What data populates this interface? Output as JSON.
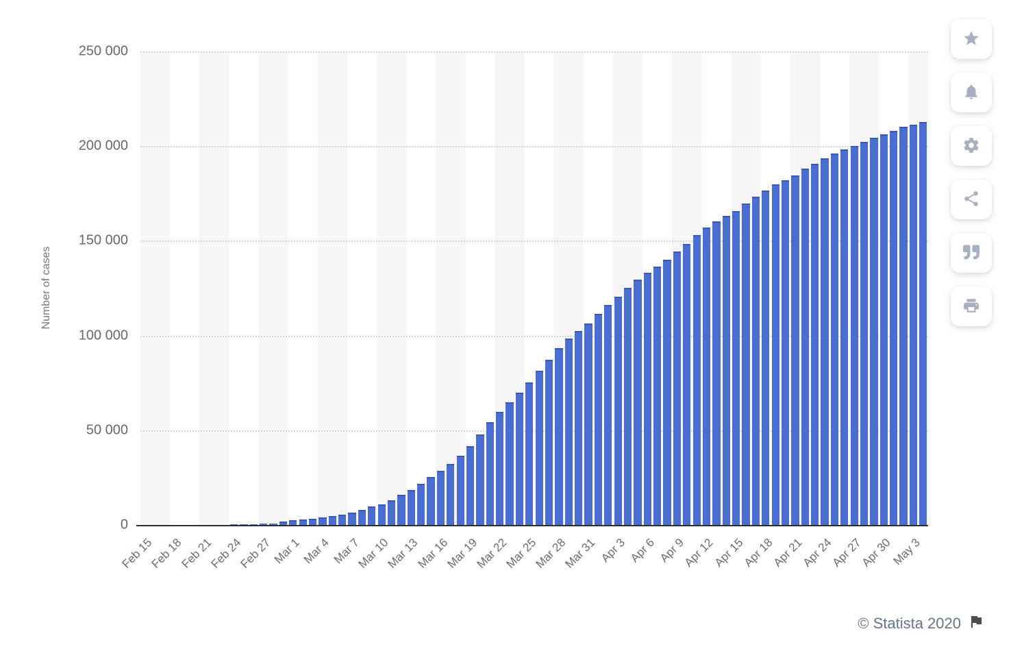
{
  "chart_data": {
    "type": "bar",
    "title": "",
    "xlabel": "",
    "ylabel": "Number of cases",
    "ylim": [
      0,
      250000
    ],
    "grid": "horizontal-dotted",
    "legend": "none",
    "x_tick_every": 3,
    "y_ticks": [
      {
        "value": 250000,
        "label": "250 000"
      },
      {
        "value": 200000,
        "label": "200 000"
      },
      {
        "value": 150000,
        "label": "150 000"
      },
      {
        "value": 100000,
        "label": "100 000"
      },
      {
        "value": 50000,
        "label": "50 000"
      },
      {
        "value": 0,
        "label": "0"
      }
    ],
    "categories": [
      "Feb 15",
      "Feb 16",
      "Feb 17",
      "Feb 18",
      "Feb 19",
      "Feb 20",
      "Feb 21",
      "Feb 22",
      "Feb 23",
      "Feb 24",
      "Feb 25",
      "Feb 26",
      "Feb 27",
      "Feb 28",
      "Feb 29",
      "Mar 1",
      "Mar 2",
      "Mar 3",
      "Mar 4",
      "Mar 5",
      "Mar 6",
      "Mar 7",
      "Mar 8",
      "Mar 9",
      "Mar 10",
      "Mar 11",
      "Mar 12",
      "Mar 13",
      "Mar 14",
      "Mar 15",
      "Mar 16",
      "Mar 17",
      "Mar 18",
      "Mar 19",
      "Mar 20",
      "Mar 21",
      "Mar 22",
      "Mar 23",
      "Mar 24",
      "Mar 25",
      "Mar 26",
      "Mar 27",
      "Mar 28",
      "Mar 29",
      "Mar 30",
      "Mar 31",
      "Apr 1",
      "Apr 2",
      "Apr 3",
      "Apr 4",
      "Apr 5",
      "Apr 6",
      "Apr 7",
      "Apr 8",
      "Apr 9",
      "Apr 10",
      "Apr 11",
      "Apr 12",
      "Apr 13",
      "Apr 14",
      "Apr 15",
      "Apr 16",
      "Apr 17",
      "Apr 18",
      "Apr 19",
      "Apr 20",
      "Apr 21",
      "Apr 22",
      "Apr 23",
      "Apr 24",
      "Apr 25",
      "Apr 26",
      "Apr 27",
      "Apr 28",
      "Apr 29",
      "Apr 30",
      "May 1",
      "May 2",
      "May 3",
      "May 4"
    ],
    "values": [
      3,
      3,
      3,
      3,
      3,
      4,
      21,
      79,
      157,
      229,
      323,
      470,
      655,
      889,
      1128,
      1694,
      2036,
      2502,
      3089,
      3858,
      4636,
      5883,
      7375,
      9172,
      10149,
      12462,
      15113,
      17660,
      21157,
      24747,
      27980,
      31506,
      35713,
      41035,
      47021,
      53578,
      59138,
      63927,
      69176,
      74386,
      80539,
      86498,
      92472,
      97689,
      101739,
      105792,
      110574,
      115242,
      119827,
      124632,
      128948,
      132547,
      135586,
      139422,
      143626,
      147577,
      152271,
      156363,
      159516,
      162488,
      165155,
      168941,
      172434,
      175925,
      178972,
      181228,
      183957,
      187327,
      189973,
      192994,
      195351,
      197675,
      199414,
      201505,
      203591,
      205463,
      207428,
      209328,
      210717,
      211938
    ],
    "bar_color": "#4a6dd2",
    "bar_top_color": "#3a57b5",
    "stripe_color": "#f6f6f8"
  },
  "toolbar": {
    "icon_color": "#a7afc0",
    "buttons": [
      {
        "name": "favorite",
        "icon": "star-icon"
      },
      {
        "name": "notifications",
        "icon": "bell-icon"
      },
      {
        "name": "settings",
        "icon": "gear-icon"
      },
      {
        "name": "share",
        "icon": "share-icon"
      },
      {
        "name": "cite",
        "icon": "quote-icon"
      },
      {
        "name": "print",
        "icon": "printer-icon"
      }
    ]
  },
  "footer": {
    "copyright": "© Statista 2020",
    "flag_icon": "flag-icon"
  }
}
